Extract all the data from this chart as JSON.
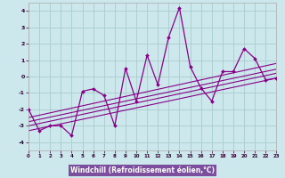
{
  "xlabel": "Windchill (Refroidissement éolien,°C)",
  "background_color": "#cce8ec",
  "plot_bg_color": "#cce8ec",
  "xlabel_bg_color": "#7b4f9e",
  "xlabel_text_color": "#ffffff",
  "grid_color": "#aacccc",
  "line_color": "#880088",
  "ylim": [
    -4.5,
    4.5
  ],
  "xlim": [
    0,
    23
  ],
  "yticks": [
    -4,
    -3,
    -2,
    -1,
    0,
    1,
    2,
    3,
    4
  ],
  "xticks": [
    0,
    1,
    2,
    3,
    4,
    5,
    6,
    7,
    8,
    9,
    10,
    11,
    12,
    13,
    14,
    15,
    16,
    17,
    18,
    19,
    20,
    21,
    22,
    23
  ],
  "main_line_x": [
    0,
    1,
    2,
    3,
    4,
    5,
    6,
    7,
    8,
    9,
    10,
    11,
    12,
    13,
    14,
    15,
    16,
    17,
    18,
    19,
    20,
    21,
    22,
    23
  ],
  "main_line_y": [
    -2.0,
    -3.3,
    -3.0,
    -3.0,
    -3.6,
    -0.9,
    -0.75,
    -1.15,
    -3.0,
    0.5,
    -1.5,
    1.3,
    -0.5,
    2.4,
    4.2,
    0.6,
    -0.7,
    -1.5,
    0.3,
    0.3,
    1.7,
    1.1,
    -0.2,
    -0.1
  ],
  "reg_lines": [
    {
      "x": [
        0,
        23
      ],
      "y": [
        -3.3,
        -0.1
      ]
    },
    {
      "x": [
        0,
        23
      ],
      "y": [
        -3.0,
        0.2
      ]
    },
    {
      "x": [
        0,
        23
      ],
      "y": [
        -2.75,
        0.45
      ]
    },
    {
      "x": [
        0,
        23
      ],
      "y": [
        -2.5,
        0.8
      ]
    }
  ]
}
